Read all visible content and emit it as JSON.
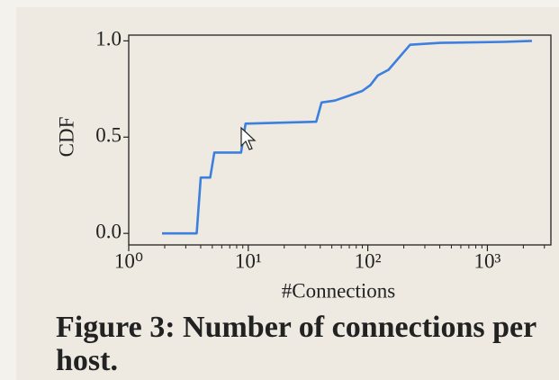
{
  "chart_data": {
    "type": "line",
    "xlabel": "#Connections",
    "ylabel": "CDF",
    "xscale": "log",
    "x": [
      1.9,
      3.7,
      4.0,
      4.8,
      5.2,
      8.7,
      9.5,
      37,
      41,
      53,
      66,
      90,
      105,
      121,
      149,
      226,
      406,
      1370,
      2360
    ],
    "values": [
      0,
      0,
      0.29,
      0.29,
      0.42,
      0.42,
      0.57,
      0.58,
      0.68,
      0.69,
      0.71,
      0.74,
      0.77,
      0.82,
      0.85,
      0.98,
      0.99,
      0.995,
      1.0
    ],
    "color": "#3c7fdf",
    "xlim": [
      1,
      3400
    ],
    "ylim": [
      -0.06,
      1.03
    ],
    "xticks": [
      {
        "value": 1,
        "label": "10⁰"
      },
      {
        "value": 10,
        "label": "10¹"
      },
      {
        "value": 100,
        "label": "10²"
      },
      {
        "value": 1000,
        "label": "10³"
      }
    ],
    "yticks": [
      {
        "value": 0,
        "label": "0.0"
      },
      0.5,
      {
        "value": 1,
        "label": "1.0"
      }
    ],
    "grid": false
  },
  "caption": "Figure 3: Number of connections per host."
}
